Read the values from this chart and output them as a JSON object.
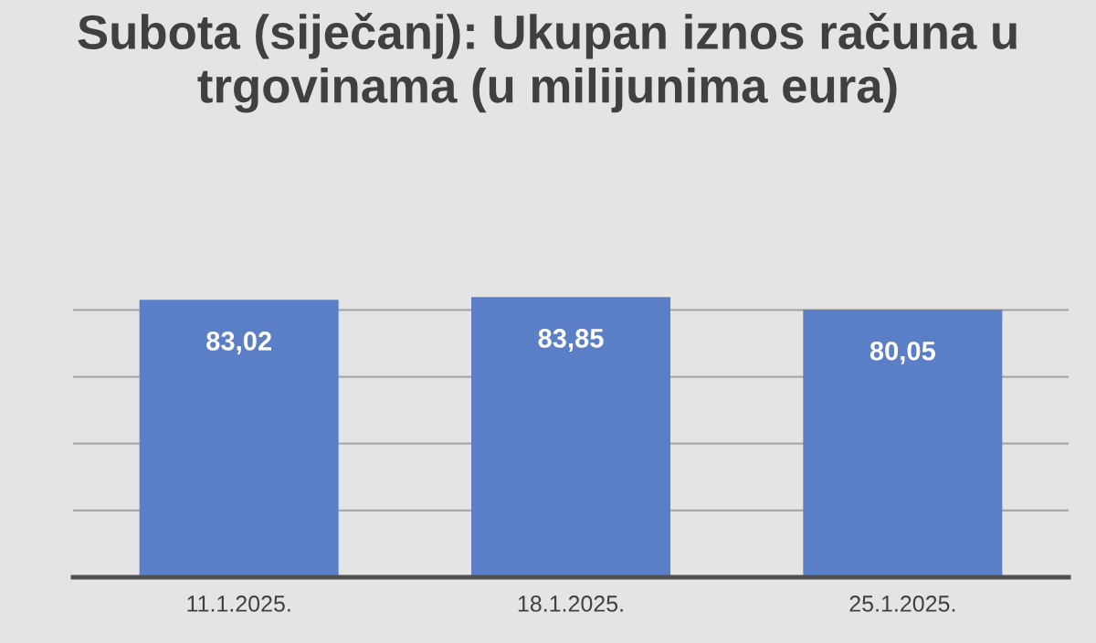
{
  "chart_data": {
    "type": "bar",
    "title": "Subota (siječanj): Ukupan iznos računa u trgovinama (u milijunima eura)",
    "categories": [
      "11.1.2025.",
      "18.1.2025.",
      "25.1.2025."
    ],
    "values": [
      83.02,
      83.85,
      80.05
    ],
    "value_labels": [
      "83,02",
      "83,85",
      "80,05"
    ],
    "color": "#5b7fc7",
    "yticks": [
      {
        "value": 0,
        "label": null
      },
      {
        "value": 20,
        "label": null
      },
      {
        "value": 40,
        "label": null
      },
      {
        "value": 60,
        "label": null
      },
      {
        "value": 80,
        "label": null
      }
    ],
    "grid": "y",
    "tick_labels": "x"
  }
}
